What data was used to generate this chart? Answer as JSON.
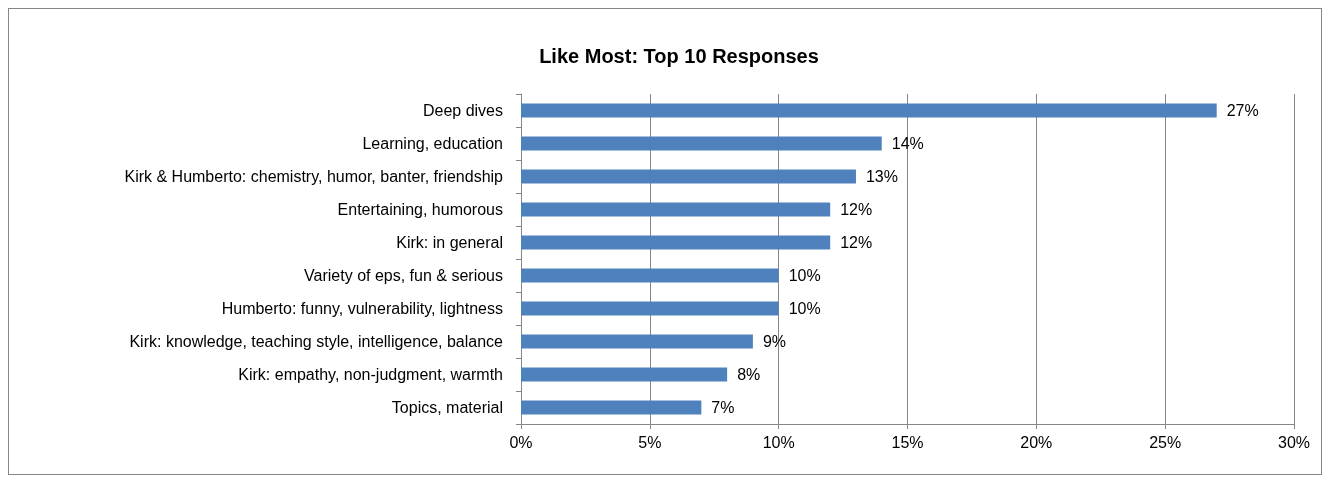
{
  "chart_data": {
    "type": "bar",
    "orientation": "horizontal",
    "title": "Like Most: Top 10 Responses",
    "categories": [
      "Deep dives",
      "Learning, education",
      "Kirk & Humberto: chemistry, humor, banter, friendship",
      "Entertaining, humorous",
      "Kirk: in general",
      "Variety of eps, fun & serious",
      "Humberto: funny, vulnerability, lightness",
      "Kirk: knowledge, teaching style, intelligence, balance",
      "Kirk: empathy, non-judgment, warmth",
      "Topics, material"
    ],
    "values": [
      27,
      14,
      13,
      12,
      12,
      10,
      10,
      9,
      8,
      7
    ],
    "value_labels": [
      "27%",
      "14%",
      "13%",
      "12%",
      "12%",
      "10%",
      "10%",
      "9%",
      "8%",
      "7%"
    ],
    "color": "#4f81bd",
    "xlim": [
      0,
      30
    ],
    "xticks": [
      {
        "value": 0,
        "label": "0%"
      },
      {
        "value": 5,
        "label": "5%"
      },
      {
        "value": 10,
        "label": "10%"
      },
      {
        "value": 15,
        "label": "15%"
      },
      {
        "value": 20,
        "label": "20%"
      },
      {
        "value": 25,
        "label": "25%"
      },
      {
        "value": 30,
        "label": "30%"
      }
    ],
    "grid": "x"
  }
}
